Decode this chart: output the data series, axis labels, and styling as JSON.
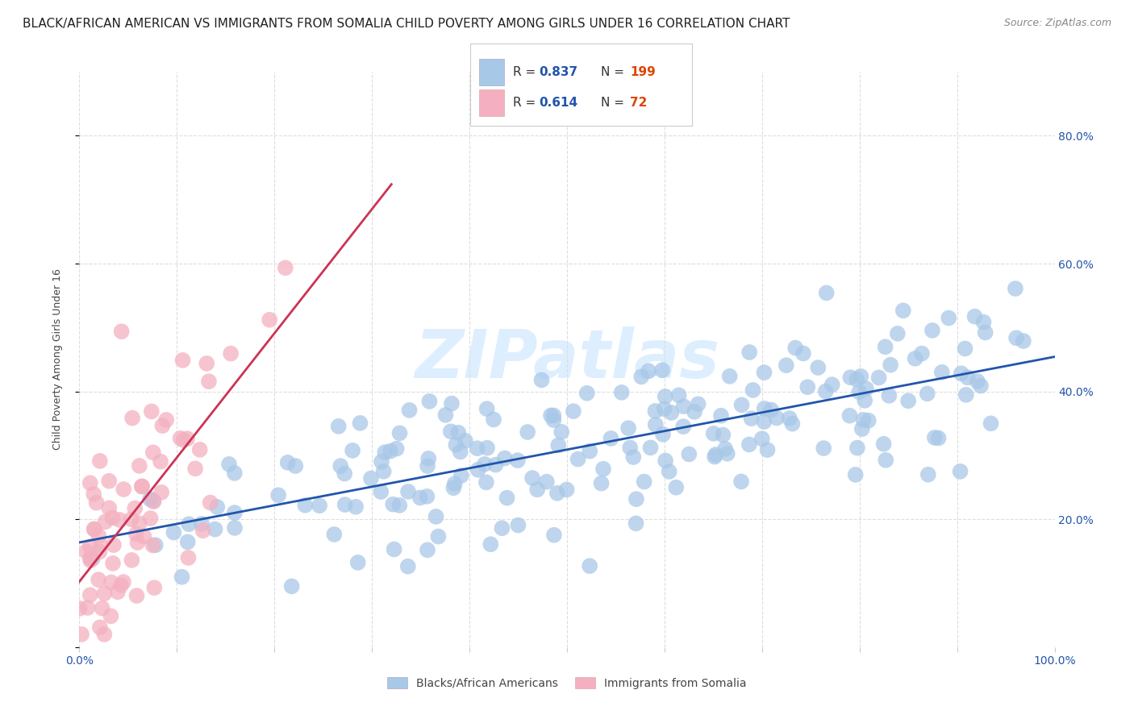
{
  "title": "BLACK/AFRICAN AMERICAN VS IMMIGRANTS FROM SOMALIA CHILD POVERTY AMONG GIRLS UNDER 16 CORRELATION CHART",
  "source": "Source: ZipAtlas.com",
  "ylabel": "Child Poverty Among Girls Under 16",
  "watermark": "ZIPatlas",
  "legend1_R": "0.837",
  "legend1_N": "199",
  "legend2_R": "0.614",
  "legend2_N": "72",
  "legend1_label": "Blacks/African Americans",
  "legend2_label": "Immigrants from Somalia",
  "blue_scatter_color": "#a8c8e8",
  "pink_scatter_color": "#f4b0c0",
  "blue_line_color": "#2255aa",
  "pink_line_color": "#cc3355",
  "legend_R_color": "#2255aa",
  "legend_N_color": "#dd4400",
  "ytick_color": "#2255aa",
  "xtick_color": "#2255aa",
  "blue_R": 0.837,
  "pink_R": 0.614,
  "blue_N": 199,
  "pink_N": 72,
  "xlim": [
    0.0,
    1.0
  ],
  "ylim": [
    0.0,
    0.9
  ],
  "yticks": [
    0.0,
    0.2,
    0.4,
    0.6,
    0.8
  ],
  "ytick_labels": [
    "",
    "20.0%",
    "40.0%",
    "60.0%",
    "80.0%"
  ],
  "xticks": [
    0.0,
    0.1,
    0.2,
    0.3,
    0.4,
    0.5,
    0.6,
    0.7,
    0.8,
    0.9,
    1.0
  ],
  "title_fontsize": 11,
  "source_fontsize": 9,
  "axis_label_fontsize": 9,
  "tick_fontsize": 10,
  "watermark_fontsize": 60,
  "watermark_color": "#ddeeff",
  "background_color": "#ffffff",
  "grid_color": "#dddddd",
  "grid_style": "--"
}
